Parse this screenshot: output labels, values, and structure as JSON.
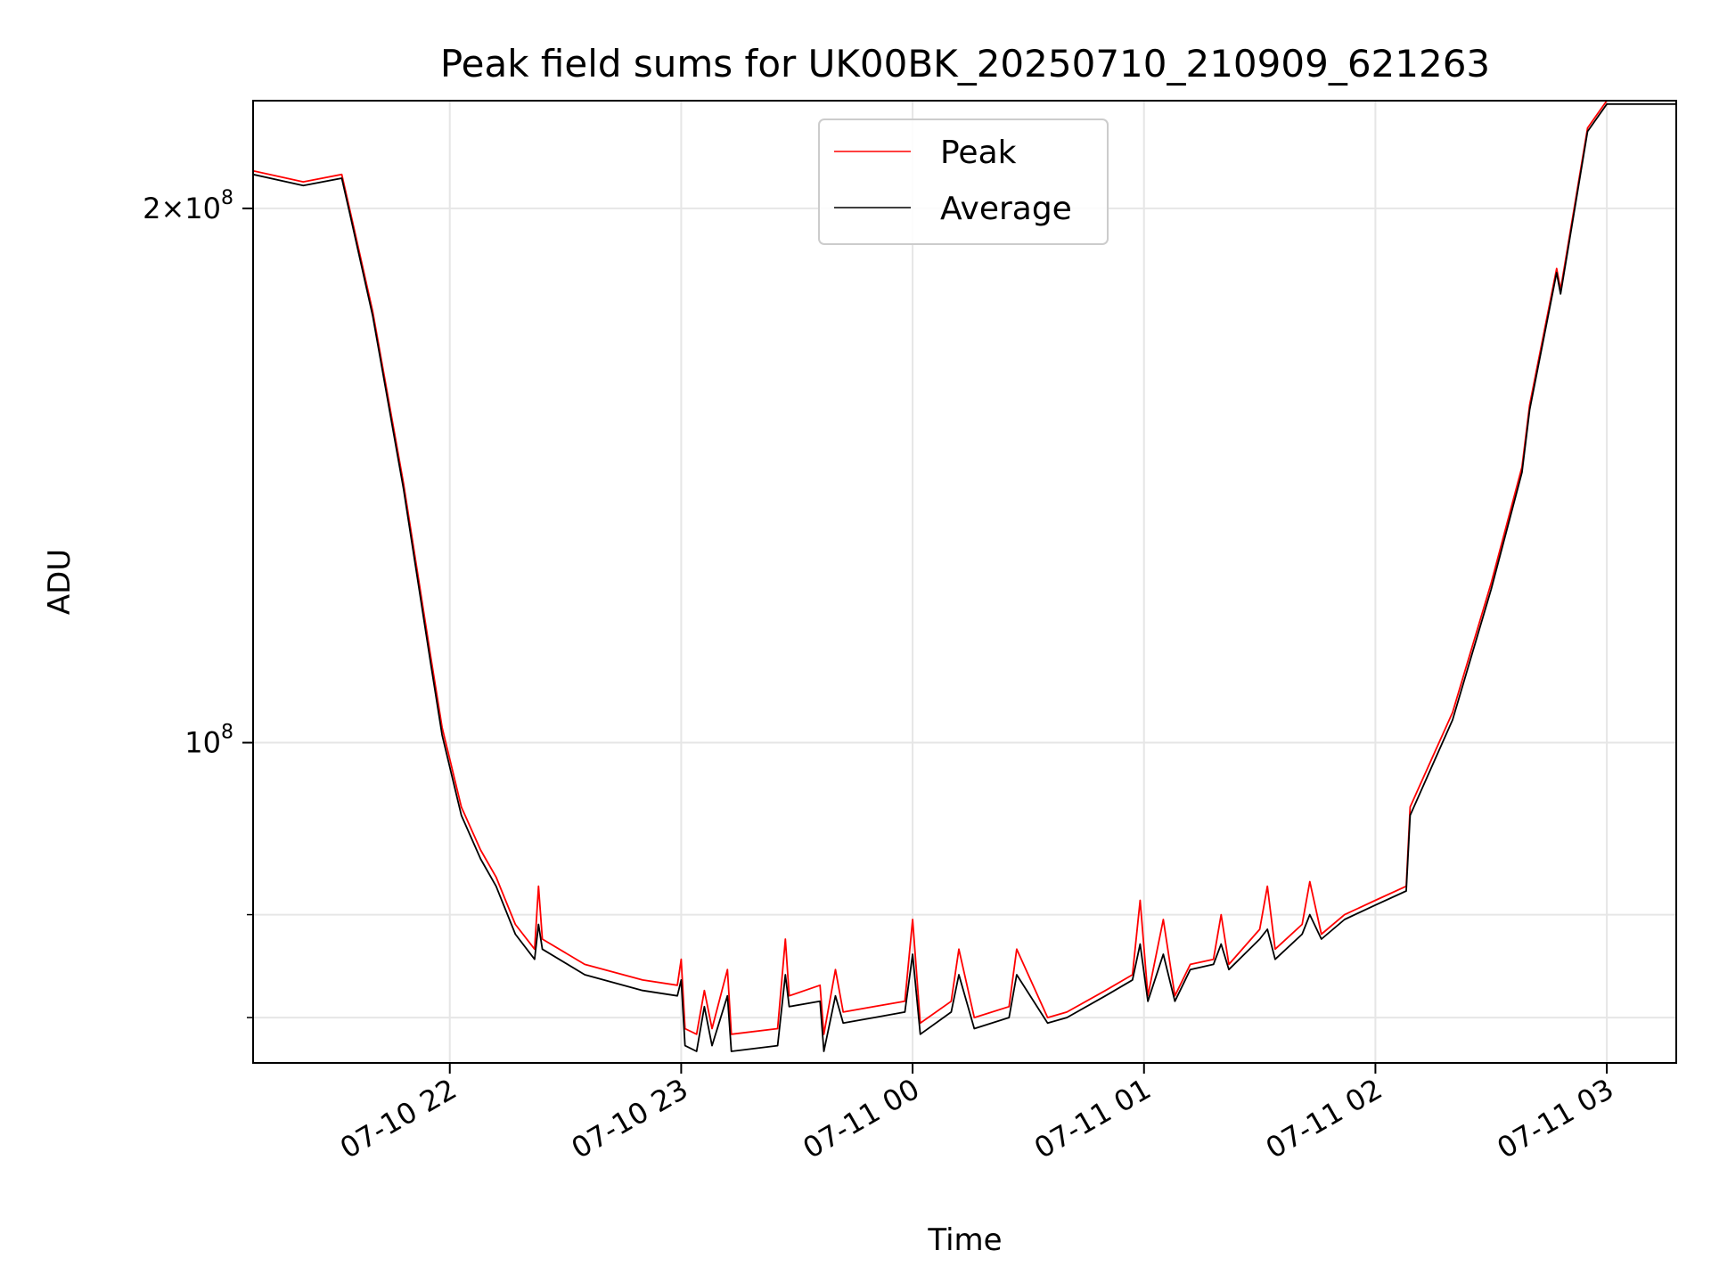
{
  "chart_data": {
    "type": "line",
    "title": "Peak field sums for UK00BK_20250710_210909_621263",
    "xlabel": "Time",
    "ylabel": "ADU",
    "yscale": "log",
    "xlim": [
      "2025-07-10 21:09",
      "2025-07-11 03:18"
    ],
    "ylim": [
      66000000,
      230000000
    ],
    "grid": true,
    "legend_placement": "upper-center",
    "x_ticks": [
      {
        "t": "2025-07-10 22:00",
        "label": "07-10 22"
      },
      {
        "t": "2025-07-10 23:00",
        "label": "07-10 23"
      },
      {
        "t": "2025-07-11 00:00",
        "label": "07-11 00"
      },
      {
        "t": "2025-07-11 01:00",
        "label": "07-11 01"
      },
      {
        "t": "2025-07-11 02:00",
        "label": "07-11 02"
      },
      {
        "t": "2025-07-11 03:00",
        "label": "07-11 03"
      }
    ],
    "y_major_ticks": [
      {
        "value": 100000000,
        "base": "10",
        "exp": "8",
        "coef": ""
      },
      {
        "value": 200000000,
        "base": "10",
        "exp": "8",
        "coef": "2×"
      }
    ],
    "y_minor_ticks": [
      70000000,
      80000000
    ],
    "series": [
      {
        "name": "Peak",
        "color": "#ff0000",
        "points": [
          [
            "2025-07-10 21:09",
            210000000
          ],
          [
            "2025-07-10 21:22",
            207000000
          ],
          [
            "2025-07-10 21:32",
            209000000
          ],
          [
            "2025-07-10 21:34",
            200000000
          ],
          [
            "2025-07-10 21:40",
            175000000
          ],
          [
            "2025-07-10 21:48",
            140000000
          ],
          [
            "2025-07-10 21:55",
            112000000
          ],
          [
            "2025-07-10 21:58",
            102000000
          ],
          [
            "2025-07-10 22:03",
            92000000
          ],
          [
            "2025-07-10 22:08",
            87000000
          ],
          [
            "2025-07-10 22:12",
            84000000
          ],
          [
            "2025-07-10 22:17",
            79000000
          ],
          [
            "2025-07-10 22:22",
            76500000
          ],
          [
            "2025-07-10 22:23",
            83000000
          ],
          [
            "2025-07-10 22:24",
            77500000
          ],
          [
            "2025-07-10 22:35",
            75000000
          ],
          [
            "2025-07-10 22:50",
            73500000
          ],
          [
            "2025-07-10 22:59",
            73000000
          ],
          [
            "2025-07-10 23:00",
            75500000
          ],
          [
            "2025-07-10 23:01",
            69000000
          ],
          [
            "2025-07-10 23:04",
            68500000
          ],
          [
            "2025-07-10 23:06",
            72500000
          ],
          [
            "2025-07-10 23:08",
            69000000
          ],
          [
            "2025-07-10 23:12",
            74500000
          ],
          [
            "2025-07-10 23:13",
            68500000
          ],
          [
            "2025-07-10 23:25",
            69000000
          ],
          [
            "2025-07-10 23:27",
            77500000
          ],
          [
            "2025-07-10 23:28",
            72000000
          ],
          [
            "2025-07-10 23:36",
            73000000
          ],
          [
            "2025-07-10 23:37",
            68500000
          ],
          [
            "2025-07-10 23:40",
            74500000
          ],
          [
            "2025-07-10 23:42",
            70500000
          ],
          [
            "2025-07-10 23:50",
            71000000
          ],
          [
            "2025-07-10 23:58",
            71500000
          ],
          [
            "2025-07-11 00:00",
            79500000
          ],
          [
            "2025-07-11 00:02",
            69500000
          ],
          [
            "2025-07-11 00:10",
            71500000
          ],
          [
            "2025-07-11 00:12",
            76500000
          ],
          [
            "2025-07-11 00:16",
            70000000
          ],
          [
            "2025-07-11 00:25",
            71000000
          ],
          [
            "2025-07-11 00:27",
            76500000
          ],
          [
            "2025-07-11 00:35",
            70000000
          ],
          [
            "2025-07-11 00:40",
            70500000
          ],
          [
            "2025-07-11 00:50",
            72500000
          ],
          [
            "2025-07-11 00:57",
            74000000
          ],
          [
            "2025-07-11 00:59",
            81500000
          ],
          [
            "2025-07-11 01:01",
            72000000
          ],
          [
            "2025-07-11 01:05",
            79500000
          ],
          [
            "2025-07-11 01:08",
            72000000
          ],
          [
            "2025-07-11 01:12",
            75000000
          ],
          [
            "2025-07-11 01:18",
            75500000
          ],
          [
            "2025-07-11 01:20",
            80000000
          ],
          [
            "2025-07-11 01:22",
            75000000
          ],
          [
            "2025-07-11 01:30",
            78500000
          ],
          [
            "2025-07-11 01:32",
            83000000
          ],
          [
            "2025-07-11 01:34",
            76500000
          ],
          [
            "2025-07-11 01:41",
            79000000
          ],
          [
            "2025-07-11 01:43",
            83500000
          ],
          [
            "2025-07-11 01:46",
            78000000
          ],
          [
            "2025-07-11 01:52",
            80000000
          ],
          [
            "2025-07-11 02:00",
            81500000
          ],
          [
            "2025-07-11 02:08",
            83000000
          ],
          [
            "2025-07-11 02:09",
            92000000
          ],
          [
            "2025-07-11 02:20",
            104000000
          ],
          [
            "2025-07-11 02:30",
            123000000
          ],
          [
            "2025-07-11 02:38",
            143000000
          ],
          [
            "2025-07-11 02:40",
            155000000
          ],
          [
            "2025-07-11 02:47",
            185000000
          ],
          [
            "2025-07-11 02:48",
            180000000
          ],
          [
            "2025-07-11 02:55",
            222000000
          ],
          [
            "2025-07-11 03:00",
            230000000
          ],
          [
            "2025-07-11 03:18",
            230000000
          ]
        ]
      },
      {
        "name": "Average",
        "color": "#000000",
        "points": [
          [
            "2025-07-10 21:09",
            209000000
          ],
          [
            "2025-07-10 21:22",
            206000000
          ],
          [
            "2025-07-10 21:32",
            208000000
          ],
          [
            "2025-07-10 21:34",
            199000000
          ],
          [
            "2025-07-10 21:40",
            174000000
          ],
          [
            "2025-07-10 21:48",
            139000000
          ],
          [
            "2025-07-10 21:55",
            111000000
          ],
          [
            "2025-07-10 21:58",
            101000000
          ],
          [
            "2025-07-10 22:03",
            91000000
          ],
          [
            "2025-07-10 22:08",
            86000000
          ],
          [
            "2025-07-10 22:12",
            83000000
          ],
          [
            "2025-07-10 22:17",
            78000000
          ],
          [
            "2025-07-10 22:22",
            75500000
          ],
          [
            "2025-07-10 22:23",
            79000000
          ],
          [
            "2025-07-10 22:24",
            76500000
          ],
          [
            "2025-07-10 22:35",
            74000000
          ],
          [
            "2025-07-10 22:50",
            72500000
          ],
          [
            "2025-07-10 22:59",
            72000000
          ],
          [
            "2025-07-10 23:00",
            73500000
          ],
          [
            "2025-07-10 23:01",
            67500000
          ],
          [
            "2025-07-10 23:04",
            67000000
          ],
          [
            "2025-07-10 23:06",
            71000000
          ],
          [
            "2025-07-10 23:08",
            67500000
          ],
          [
            "2025-07-10 23:12",
            72000000
          ],
          [
            "2025-07-10 23:13",
            67000000
          ],
          [
            "2025-07-10 23:25",
            67500000
          ],
          [
            "2025-07-10 23:27",
            74000000
          ],
          [
            "2025-07-10 23:28",
            71000000
          ],
          [
            "2025-07-10 23:36",
            71500000
          ],
          [
            "2025-07-10 23:37",
            67000000
          ],
          [
            "2025-07-10 23:40",
            72000000
          ],
          [
            "2025-07-10 23:42",
            69500000
          ],
          [
            "2025-07-10 23:50",
            70000000
          ],
          [
            "2025-07-10 23:58",
            70500000
          ],
          [
            "2025-07-11 00:00",
            76000000
          ],
          [
            "2025-07-11 00:02",
            68500000
          ],
          [
            "2025-07-11 00:10",
            70500000
          ],
          [
            "2025-07-11 00:12",
            74000000
          ],
          [
            "2025-07-11 00:16",
            69000000
          ],
          [
            "2025-07-11 00:25",
            70000000
          ],
          [
            "2025-07-11 00:27",
            74000000
          ],
          [
            "2025-07-11 00:35",
            69500000
          ],
          [
            "2025-07-11 00:40",
            70000000
          ],
          [
            "2025-07-11 00:50",
            72000000
          ],
          [
            "2025-07-11 00:57",
            73500000
          ],
          [
            "2025-07-11 00:59",
            77000000
          ],
          [
            "2025-07-11 01:01",
            71500000
          ],
          [
            "2025-07-11 01:05",
            76000000
          ],
          [
            "2025-07-11 01:08",
            71500000
          ],
          [
            "2025-07-11 01:12",
            74500000
          ],
          [
            "2025-07-11 01:18",
            75000000
          ],
          [
            "2025-07-11 01:20",
            77000000
          ],
          [
            "2025-07-11 01:22",
            74500000
          ],
          [
            "2025-07-11 01:30",
            77500000
          ],
          [
            "2025-07-11 01:32",
            78500000
          ],
          [
            "2025-07-11 01:34",
            75500000
          ],
          [
            "2025-07-11 01:41",
            78000000
          ],
          [
            "2025-07-11 01:43",
            80000000
          ],
          [
            "2025-07-11 01:46",
            77500000
          ],
          [
            "2025-07-11 01:52",
            79500000
          ],
          [
            "2025-07-11 02:00",
            81000000
          ],
          [
            "2025-07-11 02:08",
            82500000
          ],
          [
            "2025-07-11 02:09",
            91000000
          ],
          [
            "2025-07-11 02:20",
            103000000
          ],
          [
            "2025-07-11 02:30",
            122000000
          ],
          [
            "2025-07-11 02:38",
            142000000
          ],
          [
            "2025-07-11 02:40",
            154000000
          ],
          [
            "2025-07-11 02:47",
            184000000
          ],
          [
            "2025-07-11 02:48",
            179000000
          ],
          [
            "2025-07-11 02:55",
            221000000
          ],
          [
            "2025-07-11 03:00",
            229000000
          ],
          [
            "2025-07-11 03:18",
            229000000
          ]
        ]
      }
    ]
  }
}
